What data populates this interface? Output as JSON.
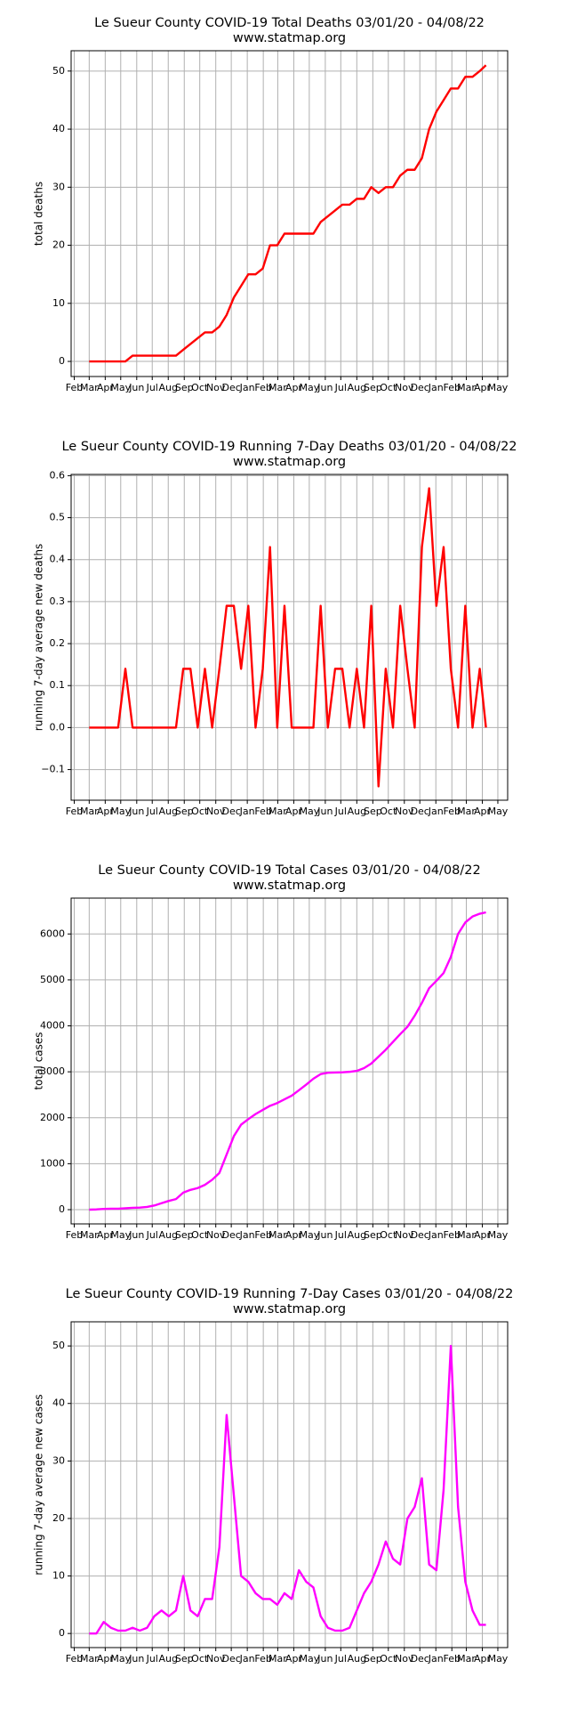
{
  "chart_data": [
    {
      "type": "line",
      "title": "Le Sueur County COVID-19 Total Deaths 03/01/20 - 04/08/22",
      "subtitle": "www.statmap.org",
      "y_label": "total deaths",
      "grid": true,
      "x": [
        0,
        14,
        28,
        42,
        56,
        70,
        84,
        98,
        112,
        126,
        140,
        154,
        168,
        182,
        196,
        210,
        224,
        238,
        252,
        266,
        280,
        294,
        308,
        322,
        336,
        350,
        364,
        378,
        392,
        406,
        420,
        434,
        448,
        462,
        476,
        490,
        504,
        518,
        532,
        546,
        560,
        574,
        588,
        602,
        616,
        630,
        644,
        658,
        672,
        686,
        700,
        714,
        728,
        742,
        756,
        768
      ],
      "xlim": [
        -35,
        810
      ],
      "xticks": [
        {
          "value": -29,
          "label": "Feb"
        },
        {
          "value": 0,
          "label": "Mar"
        },
        {
          "value": 31,
          "label": "Apr"
        },
        {
          "value": 61,
          "label": "May"
        },
        {
          "value": 92,
          "label": "Jun"
        },
        {
          "value": 122,
          "label": "Jul"
        },
        {
          "value": 153,
          "label": "Aug"
        },
        {
          "value": 184,
          "label": "Sep"
        },
        {
          "value": 214,
          "label": "Oct"
        },
        {
          "value": 245,
          "label": "Nov"
        },
        {
          "value": 275,
          "label": "Dec"
        },
        {
          "value": 306,
          "label": "Jan"
        },
        {
          "value": 337,
          "label": "Feb"
        },
        {
          "value": 365,
          "label": "Mar"
        },
        {
          "value": 396,
          "label": "Apr"
        },
        {
          "value": 426,
          "label": "May"
        },
        {
          "value": 457,
          "label": "Jun"
        },
        {
          "value": 487,
          "label": "Jul"
        },
        {
          "value": 518,
          "label": "Aug"
        },
        {
          "value": 549,
          "label": "Sep"
        },
        {
          "value": 579,
          "label": "Oct"
        },
        {
          "value": 610,
          "label": "Nov"
        },
        {
          "value": 640,
          "label": "Dec"
        },
        {
          "value": 671,
          "label": "Jan"
        },
        {
          "value": 702,
          "label": "Feb"
        },
        {
          "value": 730,
          "label": "Mar"
        },
        {
          "value": 761,
          "label": "Apr"
        },
        {
          "value": 791,
          "label": "May"
        }
      ],
      "ylim": [
        -2.6,
        53.5
      ],
      "yticks": [
        0,
        10,
        20,
        30,
        40,
        50
      ],
      "series": [
        {
          "color": "#ff0000",
          "values": [
            0,
            0,
            0,
            0,
            0,
            0,
            1,
            1,
            1,
            1,
            1,
            1,
            1,
            2,
            3,
            4,
            5,
            5,
            6,
            8,
            11,
            13,
            15,
            15,
            16,
            20,
            20,
            22,
            22,
            22,
            22,
            22,
            24,
            25,
            26,
            27,
            27,
            28,
            28,
            30,
            29,
            30,
            30,
            32,
            33,
            33,
            35,
            40,
            43,
            45,
            47,
            47,
            49,
            49,
            50,
            51
          ]
        }
      ]
    },
    {
      "type": "line",
      "title": "Le Sueur County COVID-19 Running 7-Day Deaths 03/01/20 - 04/08/22",
      "subtitle": "www.statmap.org",
      "y_label": "running 7-day average new deaths",
      "grid": true,
      "x": [
        0,
        14,
        28,
        42,
        56,
        70,
        84,
        98,
        112,
        126,
        140,
        154,
        168,
        182,
        196,
        210,
        224,
        238,
        252,
        266,
        280,
        294,
        308,
        322,
        336,
        350,
        364,
        378,
        392,
        406,
        420,
        434,
        448,
        462,
        476,
        490,
        504,
        518,
        532,
        546,
        560,
        574,
        588,
        602,
        616,
        630,
        644,
        658,
        672,
        686,
        700,
        714,
        728,
        742,
        756,
        768
      ],
      "xlim": [
        -35,
        810
      ],
      "xticks": [
        {
          "value": -29,
          "label": "Feb"
        },
        {
          "value": 0,
          "label": "Mar"
        },
        {
          "value": 31,
          "label": "Apr"
        },
        {
          "value": 61,
          "label": "May"
        },
        {
          "value": 92,
          "label": "Jun"
        },
        {
          "value": 122,
          "label": "Jul"
        },
        {
          "value": 153,
          "label": "Aug"
        },
        {
          "value": 184,
          "label": "Sep"
        },
        {
          "value": 214,
          "label": "Oct"
        },
        {
          "value": 245,
          "label": "Nov"
        },
        {
          "value": 275,
          "label": "Dec"
        },
        {
          "value": 306,
          "label": "Jan"
        },
        {
          "value": 337,
          "label": "Feb"
        },
        {
          "value": 365,
          "label": "Mar"
        },
        {
          "value": 396,
          "label": "Apr"
        },
        {
          "value": 426,
          "label": "May"
        },
        {
          "value": 457,
          "label": "Jun"
        },
        {
          "value": 487,
          "label": "Jul"
        },
        {
          "value": 518,
          "label": "Aug"
        },
        {
          "value": 549,
          "label": "Sep"
        },
        {
          "value": 579,
          "label": "Oct"
        },
        {
          "value": 610,
          "label": "Nov"
        },
        {
          "value": 640,
          "label": "Dec"
        },
        {
          "value": 671,
          "label": "Jan"
        },
        {
          "value": 702,
          "label": "Feb"
        },
        {
          "value": 730,
          "label": "Mar"
        },
        {
          "value": 761,
          "label": "Apr"
        },
        {
          "value": 791,
          "label": "May"
        }
      ],
      "ylim": [
        -0.173,
        0.603
      ],
      "yticks": [
        {
          "value": -0.1,
          "label": "−0.1"
        },
        {
          "value": 0,
          "label": "0.0"
        },
        {
          "value": 0.1,
          "label": "0.1"
        },
        {
          "value": 0.2,
          "label": "0.2"
        },
        {
          "value": 0.3,
          "label": "0.3"
        },
        {
          "value": 0.4,
          "label": "0.4"
        },
        {
          "value": 0.5,
          "label": "0.5"
        },
        {
          "value": 0.6,
          "label": "0.6"
        }
      ],
      "series": [
        {
          "color": "#ff0000",
          "values": [
            0,
            0,
            0,
            0,
            0,
            0.14,
            0,
            0,
            0,
            0,
            0,
            0,
            0,
            0.14,
            0.14,
            0,
            0.14,
            0,
            0.14,
            0.29,
            0.29,
            0.14,
            0.29,
            0,
            0.14,
            0.43,
            0,
            0.29,
            0,
            0,
            0,
            0,
            0.29,
            0,
            0.14,
            0.14,
            0,
            0.14,
            0,
            0.29,
            -0.14,
            0.14,
            0,
            0.29,
            0.14,
            0,
            0.43,
            0.57,
            0.29,
            0.43,
            0.14,
            0,
            0.29,
            0,
            0.14,
            0
          ]
        }
      ]
    },
    {
      "type": "line",
      "title": "Le Sueur County COVID-19 Total Cases 03/01/20 - 04/08/22",
      "subtitle": "www.statmap.org",
      "y_label": "total cases",
      "grid": true,
      "x": [
        0,
        14,
        28,
        42,
        56,
        70,
        84,
        98,
        112,
        126,
        140,
        154,
        168,
        182,
        196,
        210,
        224,
        238,
        252,
        266,
        280,
        294,
        308,
        322,
        336,
        350,
        364,
        378,
        392,
        406,
        420,
        434,
        448,
        462,
        476,
        490,
        504,
        518,
        532,
        546,
        560,
        574,
        588,
        602,
        616,
        630,
        644,
        658,
        672,
        686,
        700,
        714,
        728,
        742,
        756,
        768
      ],
      "xlim": [
        -35,
        810
      ],
      "xticks": [
        {
          "value": -29,
          "label": "Feb"
        },
        {
          "value": 0,
          "label": "Mar"
        },
        {
          "value": 31,
          "label": "Apr"
        },
        {
          "value": 61,
          "label": "May"
        },
        {
          "value": 92,
          "label": "Jun"
        },
        {
          "value": 122,
          "label": "Jul"
        },
        {
          "value": 153,
          "label": "Aug"
        },
        {
          "value": 184,
          "label": "Sep"
        },
        {
          "value": 214,
          "label": "Oct"
        },
        {
          "value": 245,
          "label": "Nov"
        },
        {
          "value": 275,
          "label": "Dec"
        },
        {
          "value": 306,
          "label": "Jan"
        },
        {
          "value": 337,
          "label": "Feb"
        },
        {
          "value": 365,
          "label": "Mar"
        },
        {
          "value": 396,
          "label": "Apr"
        },
        {
          "value": 426,
          "label": "May"
        },
        {
          "value": 457,
          "label": "Jun"
        },
        {
          "value": 487,
          "label": "Jul"
        },
        {
          "value": 518,
          "label": "Aug"
        },
        {
          "value": 549,
          "label": "Sep"
        },
        {
          "value": 579,
          "label": "Oct"
        },
        {
          "value": 610,
          "label": "Nov"
        },
        {
          "value": 640,
          "label": "Dec"
        },
        {
          "value": 671,
          "label": "Jan"
        },
        {
          "value": 702,
          "label": "Feb"
        },
        {
          "value": 730,
          "label": "Mar"
        },
        {
          "value": 761,
          "label": "Apr"
        },
        {
          "value": 791,
          "label": "May"
        }
      ],
      "ylim": [
        -310,
        6780
      ],
      "yticks": [
        0,
        1000,
        2000,
        3000,
        4000,
        5000,
        6000
      ],
      "series": [
        {
          "color": "#ff00ff",
          "values": [
            0,
            5,
            15,
            20,
            20,
            30,
            40,
            45,
            60,
            90,
            140,
            190,
            230,
            370,
            430,
            470,
            540,
            650,
            800,
            1200,
            1600,
            1850,
            1970,
            2080,
            2170,
            2260,
            2320,
            2400,
            2480,
            2600,
            2720,
            2850,
            2950,
            2980,
            2985,
            2990,
            3000,
            3020,
            3080,
            3180,
            3330,
            3480,
            3650,
            3820,
            3980,
            4220,
            4500,
            4820,
            4980,
            5150,
            5500,
            6000,
            6250,
            6380,
            6440,
            6470
          ]
        }
      ]
    },
    {
      "type": "line",
      "title": "Le Sueur County COVID-19 Running 7-Day Cases 03/01/20 - 04/08/22",
      "subtitle": "www.statmap.org",
      "y_label": "running 7-day average new cases",
      "grid": true,
      "x": [
        0,
        14,
        28,
        42,
        56,
        70,
        84,
        98,
        112,
        126,
        140,
        154,
        168,
        182,
        196,
        210,
        224,
        238,
        252,
        266,
        280,
        294,
        308,
        322,
        336,
        350,
        364,
        378,
        392,
        406,
        420,
        434,
        448,
        462,
        476,
        490,
        504,
        518,
        532,
        546,
        560,
        574,
        588,
        602,
        616,
        630,
        644,
        658,
        672,
        686,
        700,
        714,
        728,
        742,
        756,
        768
      ],
      "xlim": [
        -35,
        810
      ],
      "xticks": [
        {
          "value": -29,
          "label": "Feb"
        },
        {
          "value": 0,
          "label": "Mar"
        },
        {
          "value": 31,
          "label": "Apr"
        },
        {
          "value": 61,
          "label": "May"
        },
        {
          "value": 92,
          "label": "Jun"
        },
        {
          "value": 122,
          "label": "Jul"
        },
        {
          "value": 153,
          "label": "Aug"
        },
        {
          "value": 184,
          "label": "Sep"
        },
        {
          "value": 214,
          "label": "Oct"
        },
        {
          "value": 245,
          "label": "Nov"
        },
        {
          "value": 275,
          "label": "Dec"
        },
        {
          "value": 306,
          "label": "Jan"
        },
        {
          "value": 337,
          "label": "Feb"
        },
        {
          "value": 365,
          "label": "Mar"
        },
        {
          "value": 396,
          "label": "Apr"
        },
        {
          "value": 426,
          "label": "May"
        },
        {
          "value": 457,
          "label": "Jun"
        },
        {
          "value": 487,
          "label": "Jul"
        },
        {
          "value": 518,
          "label": "Aug"
        },
        {
          "value": 549,
          "label": "Sep"
        },
        {
          "value": 579,
          "label": "Oct"
        },
        {
          "value": 610,
          "label": "Nov"
        },
        {
          "value": 640,
          "label": "Dec"
        },
        {
          "value": 671,
          "label": "Jan"
        },
        {
          "value": 702,
          "label": "Feb"
        },
        {
          "value": 730,
          "label": "Mar"
        },
        {
          "value": 761,
          "label": "Apr"
        },
        {
          "value": 791,
          "label": "May"
        }
      ],
      "ylim": [
        -2.45,
        54.2
      ],
      "yticks": [
        0,
        10,
        20,
        30,
        40,
        50
      ],
      "series": [
        {
          "color": "#ff00ff",
          "values": [
            0,
            0,
            2,
            1,
            0.5,
            0.5,
            1,
            0.5,
            1,
            3,
            4,
            3,
            4,
            10,
            4,
            3,
            6,
            6,
            15,
            38,
            24,
            10,
            9,
            7,
            6,
            6,
            5,
            7,
            6,
            11,
            9,
            8,
            3,
            1,
            0.5,
            0.5,
            1,
            4,
            7,
            9,
            12,
            16,
            13,
            12,
            20,
            22,
            27,
            12,
            11,
            25,
            50,
            22,
            9,
            4,
            1.5,
            1.5
          ]
        }
      ]
    }
  ]
}
